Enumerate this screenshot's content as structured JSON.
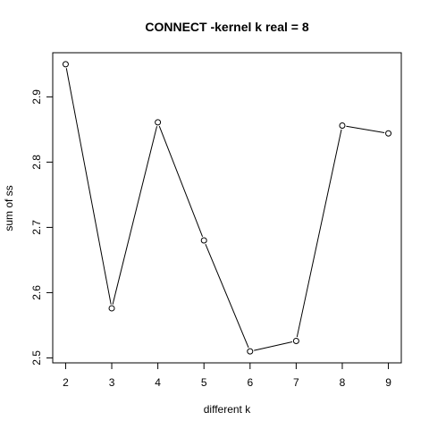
{
  "chart_data": {
    "type": "line",
    "title": "CONNECT -kernel  k real =  8",
    "xlabel": "different k",
    "ylabel": "sum of ss",
    "x": [
      2,
      3,
      4,
      5,
      6,
      7,
      8,
      9
    ],
    "series": [
      {
        "values": [
          2.95,
          2.576,
          2.861,
          2.68,
          2.51,
          2.526,
          2.856,
          2.844
        ],
        "marker": "open-circle",
        "color": "#000000"
      }
    ],
    "x_ticks": [
      2,
      3,
      4,
      5,
      6,
      7,
      8,
      9
    ],
    "x_tick_labels": [
      "2",
      "3",
      "4",
      "5",
      "6",
      "7",
      "8",
      "9"
    ],
    "y_ticks": [
      2.5,
      2.6,
      2.7,
      2.8,
      2.9
    ],
    "y_tick_labels": [
      "2.5",
      "2.6",
      "2.7",
      "2.8",
      "2.9"
    ],
    "xlim": [
      1.72,
      9.28
    ],
    "ylim": [
      2.4924,
      2.9676
    ],
    "grid": false,
    "legend": "none"
  }
}
